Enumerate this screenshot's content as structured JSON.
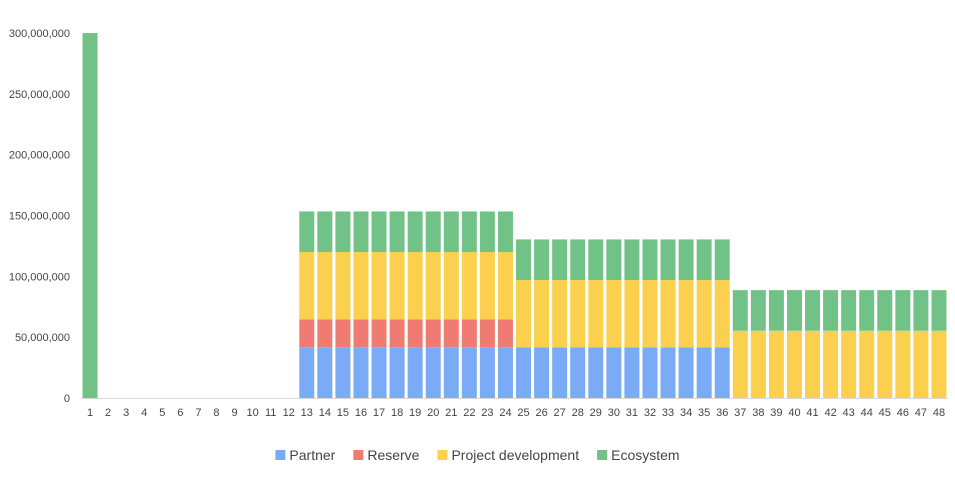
{
  "chart_data": {
    "type": "bar",
    "stacked": true,
    "title": "",
    "xlabel": "",
    "ylabel": "",
    "ylim": [
      0,
      300000000
    ],
    "y_ticks": [
      "0",
      "50,000,000",
      "100,000,000",
      "150,000,000",
      "200,000,000",
      "250,000,000",
      "300,000,000"
    ],
    "y_tick_values": [
      0,
      50000000,
      100000000,
      150000000,
      200000000,
      250000000,
      300000000
    ],
    "grid": false,
    "legend_position": "bottom",
    "categories": [
      "1",
      "2",
      "3",
      "4",
      "5",
      "6",
      "7",
      "8",
      "9",
      "10",
      "11",
      "12",
      "13",
      "14",
      "15",
      "16",
      "17",
      "18",
      "19",
      "20",
      "21",
      "22",
      "23",
      "24",
      "25",
      "26",
      "27",
      "28",
      "29",
      "30",
      "31",
      "32",
      "33",
      "34",
      "35",
      "36",
      "37",
      "38",
      "39",
      "40",
      "41",
      "42",
      "43",
      "44",
      "45",
      "46",
      "47",
      "48"
    ],
    "series": [
      {
        "name": "Partner",
        "color": "#7baaf7",
        "values": [
          0,
          0,
          0,
          0,
          0,
          0,
          0,
          0,
          0,
          0,
          0,
          0,
          41666667,
          41666667,
          41666667,
          41666667,
          41666667,
          41666667,
          41666667,
          41666667,
          41666667,
          41666667,
          41666667,
          41666667,
          41666667,
          41666667,
          41666667,
          41666667,
          41666667,
          41666667,
          41666667,
          41666667,
          41666667,
          41666667,
          41666667,
          41666667,
          0,
          0,
          0,
          0,
          0,
          0,
          0,
          0,
          0,
          0,
          0,
          0
        ]
      },
      {
        "name": "Reserve",
        "color": "#f07b72",
        "values": [
          0,
          0,
          0,
          0,
          0,
          0,
          0,
          0,
          0,
          0,
          0,
          0,
          23000000,
          23000000,
          23000000,
          23000000,
          23000000,
          23000000,
          23000000,
          23000000,
          23000000,
          23000000,
          23000000,
          23000000,
          0,
          0,
          0,
          0,
          0,
          0,
          0,
          0,
          0,
          0,
          0,
          0,
          0,
          0,
          0,
          0,
          0,
          0,
          0,
          0,
          0,
          0,
          0,
          0
        ]
      },
      {
        "name": "Project development",
        "color": "#fcd04f",
        "values": [
          0,
          0,
          0,
          0,
          0,
          0,
          0,
          0,
          0,
          0,
          0,
          0,
          55333333,
          55333333,
          55333333,
          55333333,
          55333333,
          55333333,
          55333333,
          55333333,
          55333333,
          55333333,
          55333333,
          55333333,
          55333333,
          55333333,
          55333333,
          55333333,
          55333333,
          55333333,
          55333333,
          55333333,
          55333333,
          55333333,
          55333333,
          55333333,
          55333333,
          55333333,
          55333333,
          55333333,
          55333333,
          55333333,
          55333333,
          55333333,
          55333333,
          55333333,
          55333333,
          55333333
        ]
      },
      {
        "name": "Ecosystem",
        "color": "#71c287",
        "values": [
          300000000,
          0,
          0,
          0,
          0,
          0,
          0,
          0,
          0,
          0,
          0,
          0,
          33333333,
          33333333,
          33333333,
          33333333,
          33333333,
          33333333,
          33333333,
          33333333,
          33333333,
          33333333,
          33333333,
          33333333,
          33333333,
          33333333,
          33333333,
          33333333,
          33333333,
          33333333,
          33333333,
          33333333,
          33333333,
          33333333,
          33333333,
          33333333,
          33333333,
          33333333,
          33333333,
          33333333,
          33333333,
          33333333,
          33333333,
          33333333,
          33333333,
          33333333,
          33333333,
          33333333
        ]
      }
    ]
  }
}
